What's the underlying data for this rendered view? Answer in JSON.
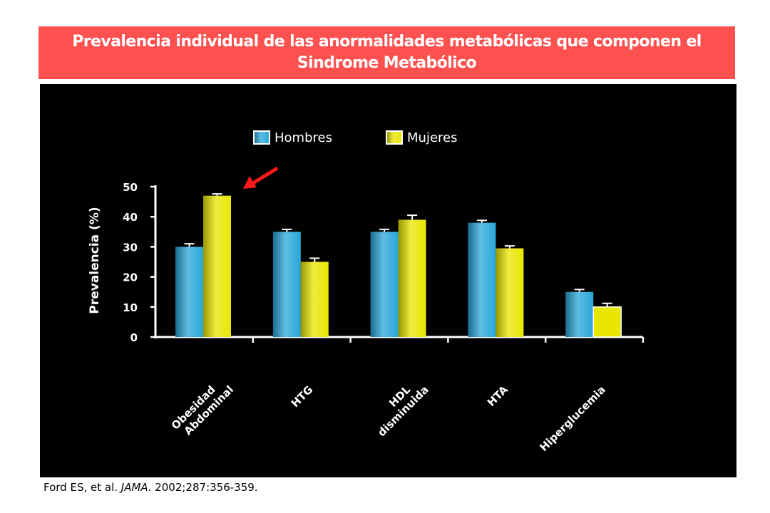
{
  "title": "Prevalencia individual de las anormalidades metabólicas que componen el Sindrome Metabólico",
  "citation": {
    "authors": "Ford ES, et al. ",
    "journal": "JAMA",
    "details": ". 2002;287:356-359."
  },
  "colors": {
    "banner": "#fd5150",
    "panel": "#000000",
    "hombres": "#29a7d9",
    "mujeres": "#e9e600",
    "arrow": "#ff1a1a"
  },
  "chart_data": {
    "type": "bar",
    "ylabel": "Prevalencia (%)",
    "ylim": [
      0,
      50
    ],
    "yticks": [
      0,
      10,
      20,
      30,
      40,
      50
    ],
    "categories": [
      [
        "Obesidad",
        "Abdominal"
      ],
      [
        "HTG"
      ],
      [
        "HDL",
        "disminuida"
      ],
      [
        "HTA"
      ],
      [
        "Hiperglucemia"
      ]
    ],
    "series": [
      {
        "name": "Hombres",
        "color": "#29a7d9",
        "values": [
          30,
          35,
          35,
          38,
          15
        ],
        "errors": [
          1,
          0.8,
          0.8,
          0.8,
          0.8
        ]
      },
      {
        "name": "Mujeres",
        "color": "#e9e600",
        "values": [
          47,
          25,
          39,
          29.5,
          10
        ],
        "errors": [
          0.6,
          1.2,
          1.5,
          0.8,
          1.2
        ]
      }
    ],
    "legend": "top",
    "annotation": {
      "type": "arrow",
      "points_to": "Mujeres, Obesidad Abdominal"
    }
  }
}
